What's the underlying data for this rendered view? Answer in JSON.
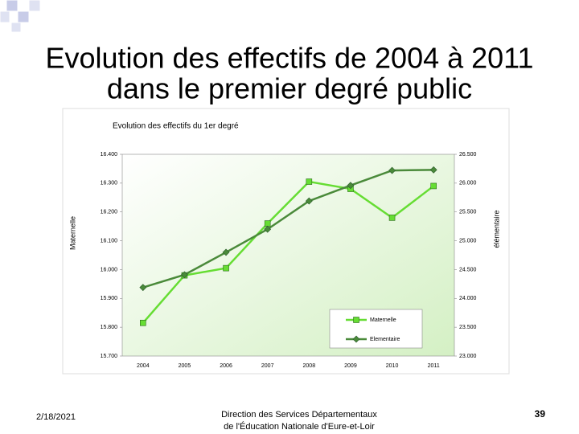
{
  "slide": {
    "title": [
      "Evolution des effectifs de 2004 à 2011",
      "dans le premier  degré public"
    ],
    "date": "2/18/2021",
    "footer": [
      "Direction des Services Départementaux",
      "de l'Éducation Nationale d'Eure-et-Loir"
    ],
    "page": "39"
  },
  "chart_data": {
    "type": "line",
    "title": "Evolution des effectifs du 1er degré",
    "categories": [
      "2004",
      "2005",
      "2006",
      "2007",
      "2008",
      "2009",
      "2010",
      "2011"
    ],
    "series": [
      {
        "name": "Maternelle",
        "color": "#66dd33",
        "marker": "square",
        "values": [
          15815,
          15980,
          16005,
          16160,
          16305,
          16280,
          16180,
          16290
        ]
      },
      {
        "name": "Elementaire",
        "color": "#4a8a3a",
        "marker": "diamond",
        "axis": "y2",
        "values": [
          24190,
          24410,
          24800,
          25200,
          25690,
          25960,
          26220,
          26230
        ]
      }
    ],
    "ylabel": "Maternelle",
    "y2label": "élémentaire",
    "ylim": [
      15700,
      16400
    ],
    "yticks": [
      {
        "value": 15700,
        "label": "15.700"
      },
      {
        "value": 15800,
        "label": "15.800"
      },
      {
        "value": 15900,
        "label": "15.900"
      },
      {
        "value": 16000,
        "label": "16.000"
      },
      {
        "value": 16100,
        "label": "16.100"
      },
      {
        "value": 16200,
        "label": "16.200"
      },
      {
        "value": 16300,
        "label": "16.300"
      },
      {
        "value": 16400,
        "label": "16.400"
      }
    ],
    "y2lim": [
      23000,
      26500
    ],
    "y2ticks": [
      {
        "value": 23000,
        "label": "23.000"
      },
      {
        "value": 23500,
        "label": "23.500"
      },
      {
        "value": 24000,
        "label": "24.000"
      },
      {
        "value": 24500,
        "label": "24.500"
      },
      {
        "value": 25000,
        "label": "25.000"
      },
      {
        "value": 25500,
        "label": "25.500"
      },
      {
        "value": 26000,
        "label": "26.000"
      },
      {
        "value": 26500,
        "label": "26.500"
      }
    ],
    "legend": "lower right"
  }
}
